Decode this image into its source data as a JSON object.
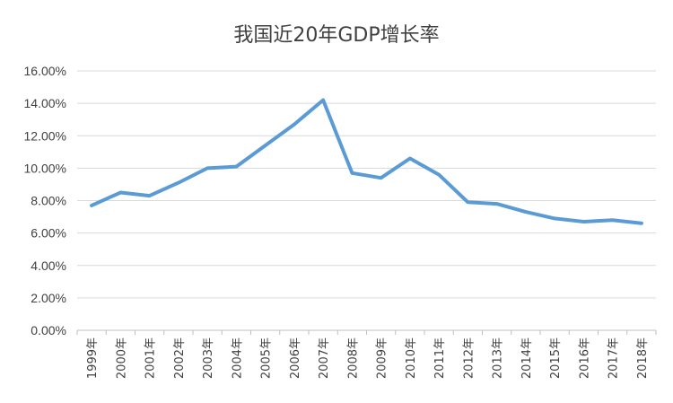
{
  "chart_data": {
    "type": "line",
    "title": "我国近20年GDP增长率",
    "xlabel": "",
    "ylabel": "",
    "categories": [
      "1999年",
      "2000年",
      "2001年",
      "2002年",
      "2003年",
      "2004年",
      "2005年",
      "2006年",
      "2007年",
      "2008年",
      "2009年",
      "2010年",
      "2011年",
      "2012年",
      "2013年",
      "2014年",
      "2015年",
      "2016年",
      "2017年",
      "2018年"
    ],
    "series": [
      {
        "values": [
          7.7,
          8.5,
          8.3,
          9.1,
          10.0,
          10.1,
          11.4,
          12.7,
          14.2,
          9.7,
          9.4,
          10.6,
          9.6,
          7.9,
          7.8,
          7.3,
          6.9,
          6.7,
          6.8,
          6.6
        ]
      }
    ],
    "y_ticks": [
      "0.00%",
      "2.00%",
      "4.00%",
      "6.00%",
      "8.00%",
      "10.00%",
      "12.00%",
      "14.00%",
      "16.00%"
    ],
    "ylim": [
      0,
      16
    ],
    "grid": true,
    "legend": "none",
    "line_color": "#5b9bd5"
  }
}
